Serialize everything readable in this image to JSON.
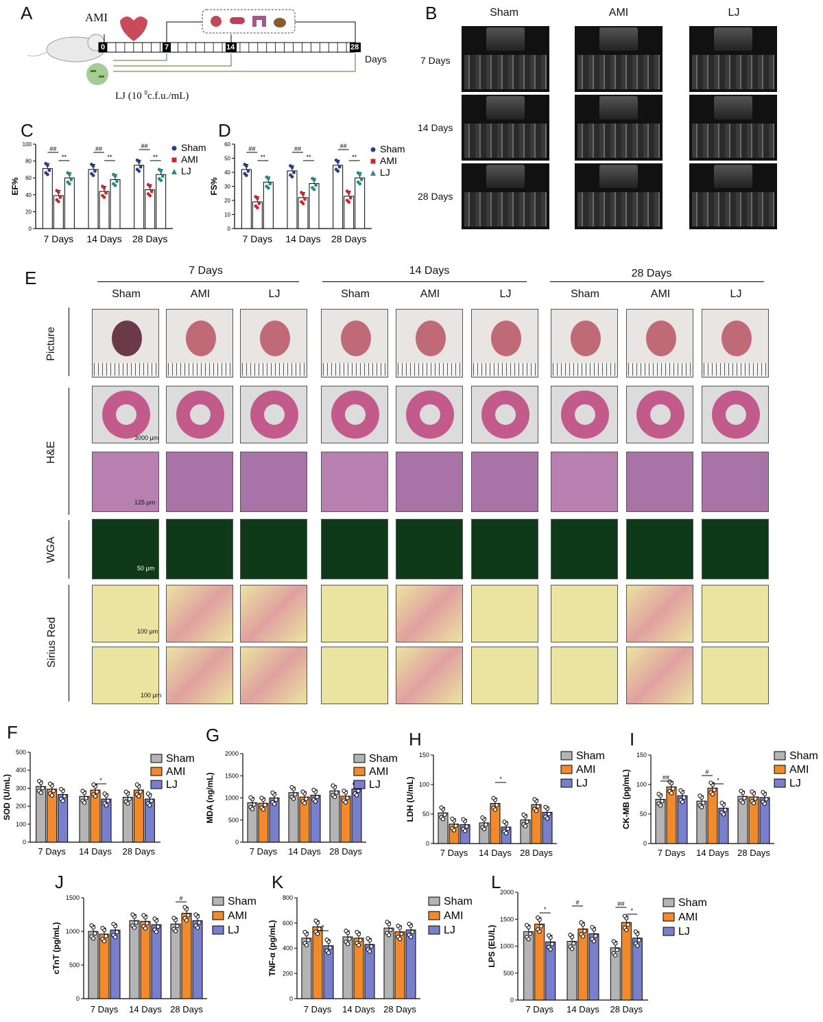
{
  "panels": {
    "A": "A",
    "B": "B",
    "C": "C",
    "D": "D",
    "E": "E",
    "F": "F",
    "G": "G",
    "H": "H",
    "I": "I",
    "J": "J",
    "K": "K",
    "L": "L"
  },
  "timeline": {
    "ami_label": "AMI",
    "day_marks": [
      "0",
      "7",
      "14",
      "28"
    ],
    "days_label": "Days",
    "lj_label_prefix": "LJ (10 ",
    "lj_label_sup": "8",
    "lj_label_suffix": "c.f.u./mL)"
  },
  "echo": {
    "columns": [
      "Sham",
      "AMI",
      "LJ"
    ],
    "rows": [
      "7 Days",
      "14 Days",
      "28 Days"
    ]
  },
  "histology": {
    "timepoints": [
      "7 Days",
      "14 Days",
      "28 Days"
    ],
    "groups": [
      "Sham",
      "AMI",
      "LJ",
      "Sham",
      "AMI",
      "LJ",
      "Sham",
      "AMI",
      "LJ"
    ],
    "rows": [
      "Picture",
      "H&E",
      "WGA",
      "Sirius Red"
    ],
    "scales": {
      "he_low": "3000 μm",
      "he_high": "125 μm",
      "wga": "50 μm",
      "sr1": "100 μm",
      "sr2": "100 μm"
    }
  },
  "colors": {
    "sham_bar": "#b4b4b4",
    "ami_bar": "#f08a2c",
    "lj_bar": "#7a7fcc",
    "sham_dot": "#2e3a8c",
    "ami_dot": "#c8282e",
    "lj_dot": "#2a8a8a"
  },
  "chart_data": [
    {
      "id": "C",
      "type": "bar",
      "ylabel": "EF%",
      "ylim": [
        0,
        100
      ],
      "yticks": [
        "0",
        "20",
        "40",
        "60",
        "80",
        "100"
      ],
      "categories": [
        "7 Days",
        "14 Days",
        "28 Days"
      ],
      "series": [
        {
          "name": "Sham",
          "values": [
            71,
            70,
            75
          ]
        },
        {
          "name": "AMI",
          "values": [
            39,
            44,
            46
          ]
        },
        {
          "name": "LJ",
          "values": [
            60,
            58,
            64
          ]
        }
      ],
      "annotations": [
        "##",
        "**",
        "##",
        "**",
        "##",
        "**"
      ],
      "legend": [
        "Sham",
        "AMI",
        "LJ"
      ]
    },
    {
      "id": "D",
      "type": "bar",
      "ylabel": "FS%",
      "ylim": [
        0,
        60
      ],
      "yticks": [
        "0",
        "10",
        "20",
        "30",
        "40",
        "50",
        "60"
      ],
      "categories": [
        "7 Days",
        "14 Days",
        "28 Days"
      ],
      "series": [
        {
          "name": "Sham",
          "values": [
            42,
            41,
            45
          ]
        },
        {
          "name": "AMI",
          "values": [
            19,
            22,
            23
          ]
        },
        {
          "name": "LJ",
          "values": [
            33,
            32,
            36
          ]
        }
      ],
      "annotations": [
        "##",
        "**",
        "##",
        "**",
        "##",
        "**"
      ],
      "legend": [
        "Sham",
        "AMI",
        "LJ"
      ]
    },
    {
      "id": "F",
      "type": "bar",
      "ylabel": "SOD (U/mL)",
      "ylim": [
        0,
        500
      ],
      "yticks": [
        "0",
        "100",
        "200",
        "300",
        "400",
        "500"
      ],
      "categories": [
        "7 Days",
        "14 Days",
        "28 Days"
      ],
      "series": [
        {
          "name": "Sham",
          "values": [
            310,
            255,
            250
          ]
        },
        {
          "name": "AMI",
          "values": [
            295,
            290,
            290
          ]
        },
        {
          "name": "LJ",
          "values": [
            265,
            240,
            240
          ]
        }
      ],
      "annotations": [
        "*"
      ],
      "legend": [
        "Sham",
        "AMI",
        "LJ"
      ]
    },
    {
      "id": "G",
      "type": "bar",
      "ylabel": "MDA (ng/mL)",
      "ylim": [
        0,
        2000
      ],
      "yticks": [
        "0",
        "500",
        "1000",
        "1500",
        "2000"
      ],
      "categories": [
        "7 Days",
        "14 Days",
        "28 Days"
      ],
      "series": [
        {
          "name": "Sham",
          "values": [
            890,
            1120,
            1160
          ]
        },
        {
          "name": "AMI",
          "values": [
            880,
            1020,
            1040
          ]
        },
        {
          "name": "LJ",
          "values": [
            1000,
            1060,
            1200
          ]
        }
      ],
      "annotations": [],
      "legend": [
        "Sham",
        "AMI",
        "LJ"
      ]
    },
    {
      "id": "H",
      "type": "bar",
      "ylabel": "LDH (U/mL)",
      "ylim": [
        0,
        150
      ],
      "yticks": [
        "0",
        "50",
        "100",
        "150"
      ],
      "categories": [
        "7 Days",
        "14 Days",
        "28 Days"
      ],
      "series": [
        {
          "name": "Sham",
          "values": [
            52,
            35,
            40
          ]
        },
        {
          "name": "AMI",
          "values": [
            33,
            68,
            66
          ]
        },
        {
          "name": "LJ",
          "values": [
            32,
            28,
            53
          ]
        }
      ],
      "annotations": [
        "*"
      ],
      "legend": [
        "Sham",
        "AMI",
        "LJ"
      ]
    },
    {
      "id": "I",
      "type": "bar",
      "ylabel": "CK-MB (pg/mL)",
      "ylim": [
        0,
        150
      ],
      "yticks": [
        "0",
        "50",
        "100",
        "150"
      ],
      "categories": [
        "7 Days",
        "14 Days",
        "28 Days"
      ],
      "series": [
        {
          "name": "Sham",
          "values": [
            75,
            72,
            80
          ]
        },
        {
          "name": "AMI",
          "values": [
            96,
            94,
            79
          ]
        },
        {
          "name": "LJ",
          "values": [
            81,
            60,
            78
          ]
        }
      ],
      "annotations": [
        "##",
        "#",
        "*"
      ],
      "legend": [
        "Sham",
        "AMI",
        "LJ"
      ]
    },
    {
      "id": "J",
      "type": "bar",
      "ylabel": "cTnT (pg/mL)",
      "ylim": [
        0,
        1500
      ],
      "yticks": [
        "0",
        "500",
        "1000",
        "1500"
      ],
      "categories": [
        "7 Days",
        "14 Days",
        "28 Days"
      ],
      "series": [
        {
          "name": "Sham",
          "values": [
            1000,
            1160,
            1110
          ]
        },
        {
          "name": "AMI",
          "values": [
            960,
            1150,
            1270
          ]
        },
        {
          "name": "LJ",
          "values": [
            1020,
            1100,
            1160
          ]
        }
      ],
      "annotations": [
        "#"
      ],
      "legend": [
        "Sham",
        "AMI",
        "LJ"
      ]
    },
    {
      "id": "K",
      "type": "bar",
      "ylabel": "TNF-α (pg/mL)",
      "ylim": [
        0,
        800
      ],
      "yticks": [
        "0",
        "200",
        "400",
        "600",
        "800"
      ],
      "categories": [
        "7 Days",
        "14 Days",
        "28 Days"
      ],
      "series": [
        {
          "name": "Sham",
          "values": [
            480,
            490,
            560
          ]
        },
        {
          "name": "AMI",
          "values": [
            570,
            480,
            530
          ]
        },
        {
          "name": "LJ",
          "values": [
            420,
            430,
            545
          ]
        }
      ],
      "annotations": [
        "*"
      ],
      "legend": [
        "Sham",
        "AMI",
        "LJ"
      ]
    },
    {
      "id": "L",
      "type": "bar",
      "ylabel": "LPS (EU/L)",
      "ylim": [
        0,
        2000
      ],
      "yticks": [
        "0",
        "500",
        "1000",
        "1500",
        "2000"
      ],
      "categories": [
        "7 Days",
        "14 Days",
        "28 Days"
      ],
      "series": [
        {
          "name": "Sham",
          "values": [
            1270,
            1090,
            970
          ]
        },
        {
          "name": "AMI",
          "values": [
            1410,
            1320,
            1440
          ]
        },
        {
          "name": "LJ",
          "values": [
            1080,
            1230,
            1150
          ]
        }
      ],
      "annotations": [
        "*",
        "#",
        "##",
        "*"
      ],
      "legend": [
        "Sham",
        "AMI",
        "LJ"
      ]
    }
  ]
}
